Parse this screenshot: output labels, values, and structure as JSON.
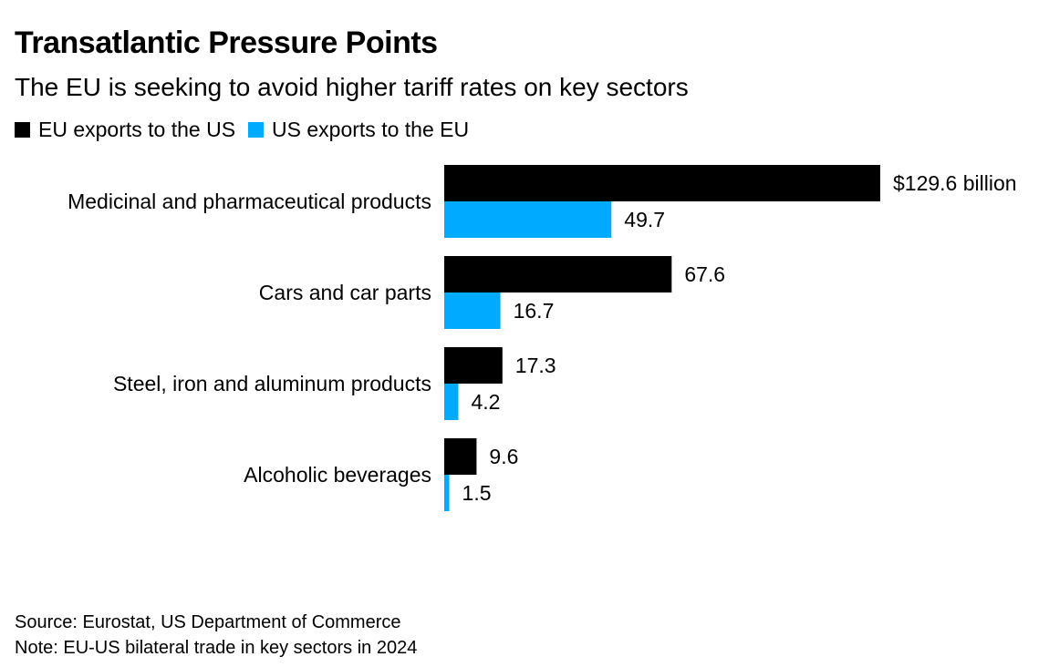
{
  "title": "Transatlantic Pressure Points",
  "subtitle": "The EU is seeking to avoid higher tariff rates on key sectors",
  "colors": {
    "eu_exports": "#000000",
    "us_exports": "#00aaff"
  },
  "footer": {
    "source": "Source: Eurostat, US Department of Commerce",
    "note": "Note: EU-US bilateral trade in key sectors in 2024"
  },
  "chart_data": {
    "type": "bar",
    "orientation": "horizontal",
    "title": "Transatlantic Pressure Points",
    "subtitle": "The EU is seeking to avoid higher tariff rates on key sectors",
    "unit": "$ billion",
    "legend_position": "top-left",
    "grid": false,
    "xlim": [
      0,
      129.6
    ],
    "categories": [
      "Medicinal and pharmaceutical products",
      "Cars and car parts",
      "Steel, iron and aluminum products",
      "Alcoholic beverages"
    ],
    "series": [
      {
        "name": "EU exports to the US",
        "color": "#000000",
        "values": [
          129.6,
          67.6,
          17.3,
          9.6
        ],
        "labels": [
          "$129.6 billion",
          "67.6",
          "17.3",
          "9.6"
        ]
      },
      {
        "name": "US exports to the EU",
        "color": "#00aaff",
        "values": [
          49.7,
          16.7,
          4.2,
          1.5
        ],
        "labels": [
          "49.7",
          "16.7",
          "4.2",
          "1.5"
        ]
      }
    ]
  }
}
